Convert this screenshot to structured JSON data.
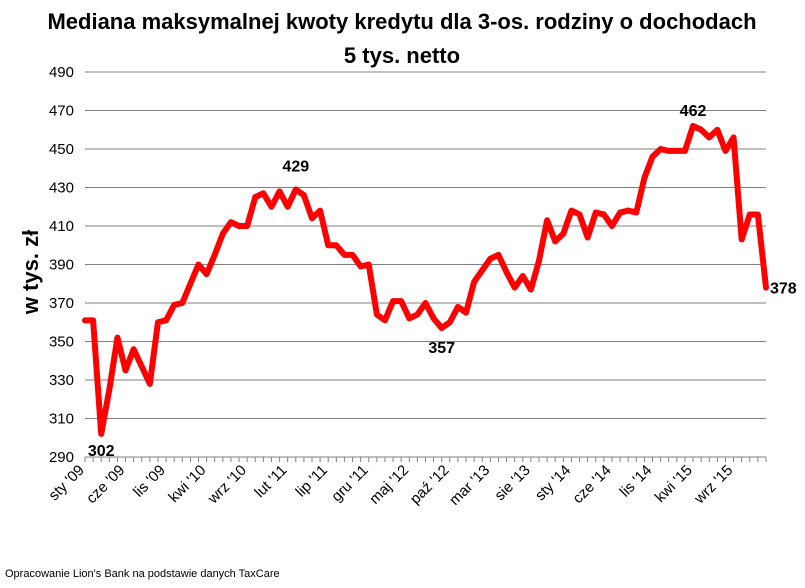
{
  "chart_data": {
    "type": "line",
    "title_line1": "Mediana maksymalnej kwoty kredytu dla 3-os. rodziny o dochodach",
    "title_line2": "5 tys. netto",
    "ylabel": "w tys. zł",
    "ylim": [
      290,
      490
    ],
    "yticks": [
      290,
      310,
      330,
      350,
      370,
      390,
      410,
      430,
      450,
      470,
      490
    ],
    "grid": true,
    "legend": "none",
    "color": "#ff0000",
    "x_tick_labels": [
      "sty '09",
      "cze '09",
      "lis '09",
      "kwi '10",
      "wrz '10",
      "lut '11",
      "lip '11",
      "gru '11",
      "maj '12",
      "paź '12",
      "mar '13",
      "sie '13",
      "sty '14",
      "cze '14",
      "lis '14",
      "kwi '15",
      "wrz '15"
    ],
    "x_tick_months": [
      0,
      5,
      10,
      15,
      20,
      25,
      30,
      35,
      40,
      45,
      50,
      55,
      60,
      65,
      70,
      75,
      80
    ],
    "series": [
      {
        "values": [
          361,
          361,
          302,
          325,
          352,
          335,
          346,
          337,
          328,
          360,
          361,
          369,
          370,
          380,
          390,
          385,
          395,
          406,
          412,
          410,
          410,
          425,
          427,
          420,
          428,
          420,
          429,
          426,
          414,
          418,
          400,
          400,
          395,
          395,
          389,
          390,
          364,
          361,
          371,
          371,
          362,
          364,
          370,
          362,
          357,
          360,
          368,
          365,
          381,
          387,
          393,
          395,
          386,
          378,
          384,
          377,
          392,
          413,
          402,
          406,
          418,
          416,
          404,
          417,
          416,
          410,
          417,
          418,
          417,
          435,
          446,
          450,
          449,
          449,
          449,
          462,
          460,
          456,
          460,
          449,
          456,
          403,
          416,
          416,
          378
        ]
      }
    ],
    "annotations": [
      {
        "month": 2,
        "value": 302,
        "text": "302"
      },
      {
        "month": 26,
        "value": 429,
        "text": "429"
      },
      {
        "month": 44,
        "value": 357,
        "text": "357"
      },
      {
        "month": 75,
        "value": 462,
        "text": "462"
      },
      {
        "month": 84,
        "value": 378,
        "text": "378"
      }
    ]
  },
  "source_note": "Opracowanie Lion's Bank na podstawie danych TaxCare"
}
